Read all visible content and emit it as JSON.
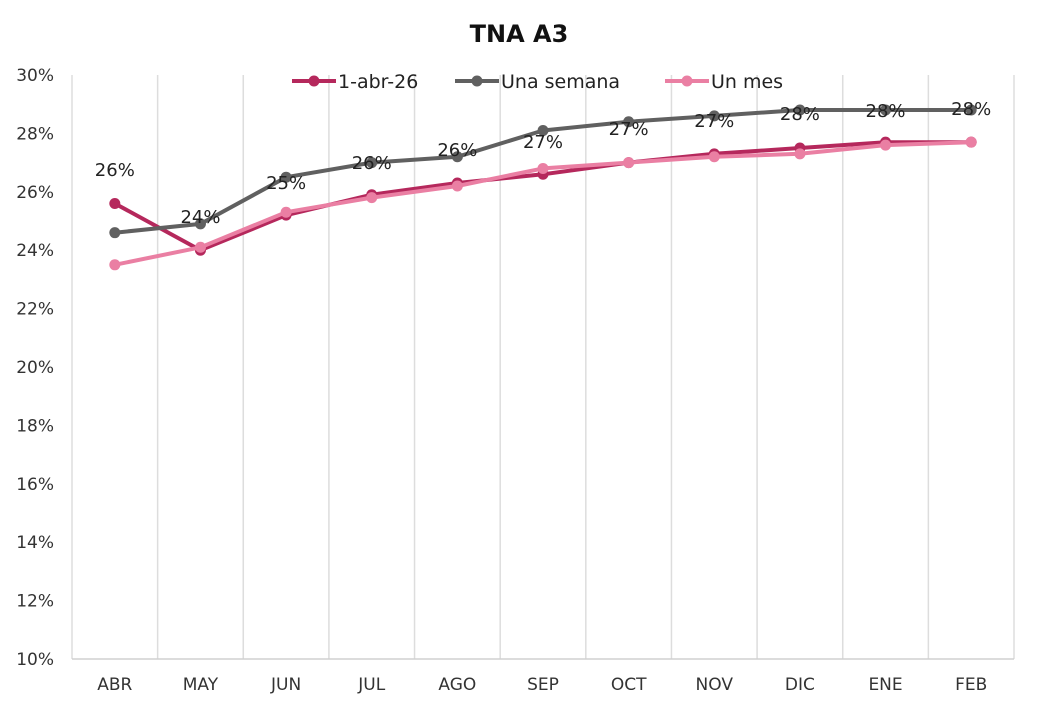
{
  "chart_data": {
    "type": "line",
    "title": "TNA A3",
    "xlabel": "",
    "ylabel": "",
    "ylim": [
      10,
      30
    ],
    "y_step": 2,
    "y_tick_suffix": "%",
    "grid": "vertical",
    "legend_position": "top",
    "categories": [
      "ABR",
      "MAY",
      "JUN",
      "JUL",
      "AGO",
      "SEP",
      "OCT",
      "NOV",
      "DIC",
      "ENE",
      "FEB"
    ],
    "series": [
      {
        "name": "1-abr-26",
        "color": "#b5285c",
        "values": [
          25.6,
          24.0,
          25.2,
          25.9,
          26.3,
          26.6,
          27.0,
          27.3,
          27.5,
          27.7,
          27.7
        ]
      },
      {
        "name": "Una semana",
        "color": "#606060",
        "values": [
          24.6,
          24.9,
          26.5,
          27.0,
          27.2,
          28.1,
          28.4,
          28.6,
          28.8,
          28.8,
          28.8
        ]
      },
      {
        "name": "Un mes",
        "color": "#ea7fa3",
        "values": [
          23.5,
          24.1,
          25.3,
          25.8,
          26.2,
          26.8,
          27.0,
          27.2,
          27.3,
          27.6,
          27.7
        ]
      }
    ],
    "data_labels": [
      "26%",
      "24%",
      "25%",
      "26%",
      "26%",
      "27%",
      "27%",
      "27%",
      "28%",
      "28%",
      "28%"
    ]
  }
}
